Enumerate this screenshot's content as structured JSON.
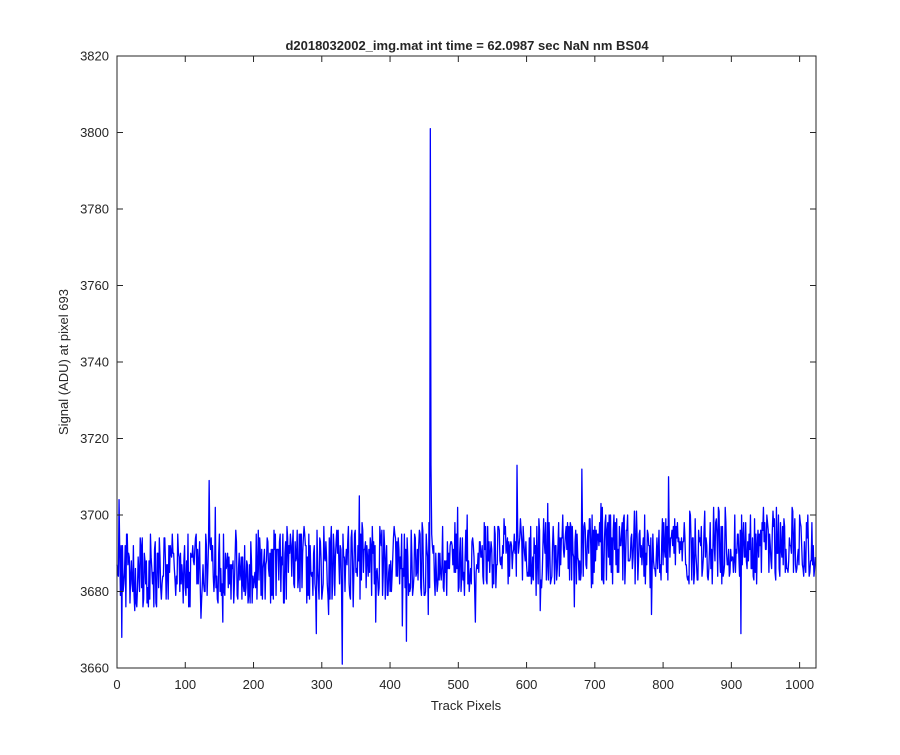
{
  "chart_data": {
    "type": "line",
    "title": "d2018032002_img.mat int time = 62.0987 sec  NaN nm BS04",
    "xlabel": "Track Pixels",
    "ylabel": "Signal (ADU) at pixel 693",
    "xlim": [
      0,
      1024
    ],
    "ylim": [
      3660,
      3820
    ],
    "xticks": [
      0,
      100,
      200,
      300,
      400,
      500,
      600,
      700,
      800,
      900,
      1000
    ],
    "yticks": [
      3660,
      3680,
      3700,
      3720,
      3740,
      3760,
      3780,
      3800,
      3820
    ],
    "grid": false,
    "series": [
      {
        "color": "#0000ff",
        "description": "Noisy signal across 1024 track pixels, baseline ~3681-3700 ADU, single spike near x=459",
        "x_start": 0,
        "x_end": 1023,
        "baseline_mean_start": 3685,
        "baseline_mean_end": 3693,
        "noise_amplitude": 10,
        "min_value": 3661,
        "min_at": 330,
        "spike": {
          "x": 459,
          "y": 3801
        }
      }
    ]
  }
}
